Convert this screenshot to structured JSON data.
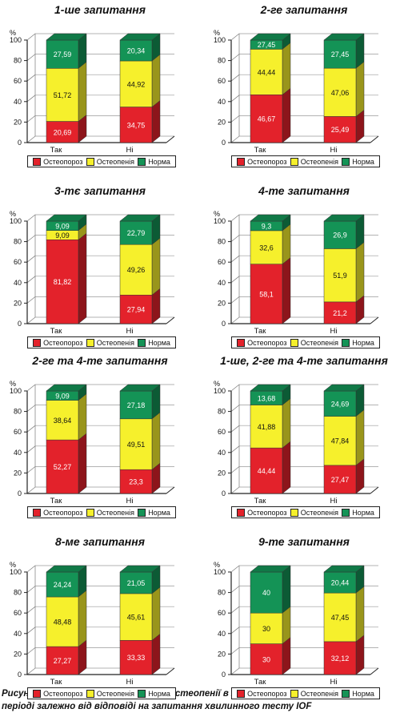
{
  "colors": {
    "osteoporosis": "#e3222b",
    "osteopenia": "#f6f02c",
    "norm": "#149356"
  },
  "legend": {
    "osteoporosis": "Остеопороз",
    "osteopenia": "Остеопенія",
    "norm": "Норма"
  },
  "caption": "Рисунок 1. Частка остеопорозу та остеопенії в жінок у постменопаузально-му періоді залежно від відповіді на запитання хвилинного тесту IOF",
  "chart_data": [
    {
      "type": "bar",
      "title": "1-ше запитання",
      "ylabel": "%",
      "ylim": [
        0,
        100
      ],
      "yticks": [
        "0",
        "20",
        "40",
        "60",
        "80",
        "100"
      ],
      "categories": [
        "Так",
        "Ні"
      ],
      "series": [
        {
          "name": "Остеопороз",
          "values": [
            20.69,
            34.75
          ],
          "labels": [
            "20,69",
            "34,75"
          ]
        },
        {
          "name": "Остеопенія",
          "values": [
            51.72,
            44.92
          ],
          "labels": [
            "51,72",
            "44,92"
          ]
        },
        {
          "name": "Норма",
          "values": [
            27.59,
            20.34
          ],
          "labels": [
            "27,59",
            "20,34"
          ]
        }
      ]
    },
    {
      "type": "bar",
      "title": "2-ге запитання",
      "ylabel": "%",
      "ylim": [
        0,
        100
      ],
      "yticks": [
        "0",
        "20",
        "40",
        "60",
        "80",
        "100"
      ],
      "categories": [
        "Так",
        "Ні"
      ],
      "series": [
        {
          "name": "Остеопороз",
          "values": [
            46.67,
            25.49
          ],
          "labels": [
            "46,67",
            "25,49"
          ]
        },
        {
          "name": "Остеопенія",
          "values": [
            44.44,
            47.06
          ],
          "labels": [
            "44,44",
            "47,06"
          ]
        },
        {
          "name": "Норма",
          "values": [
            27.45,
            27.45
          ],
          "labels": [
            "27,45",
            "27,45"
          ]
        }
      ]
    },
    {
      "type": "bar",
      "title": "3-тє запитання",
      "ylabel": "%",
      "ylim": [
        0,
        100
      ],
      "yticks": [
        "0",
        "20",
        "40",
        "60",
        "80",
        "100"
      ],
      "categories": [
        "Так",
        "Ні"
      ],
      "series": [
        {
          "name": "Остеопороз",
          "values": [
            81.82,
            27.94
          ],
          "labels": [
            "81,82",
            "27,94"
          ]
        },
        {
          "name": "Остеопенія",
          "values": [
            9.09,
            49.26
          ],
          "labels": [
            "9,09",
            "49,26"
          ]
        },
        {
          "name": "Норма",
          "values": [
            9.09,
            22.79
          ],
          "labels": [
            "9,09",
            "22,79"
          ]
        }
      ]
    },
    {
      "type": "bar",
      "title": "4-те запитання",
      "ylabel": "%",
      "ylim": [
        0,
        100
      ],
      "yticks": [
        "0",
        "20",
        "40",
        "60",
        "80",
        "100"
      ],
      "categories": [
        "Так",
        "Ні"
      ],
      "series": [
        {
          "name": "Остеопороз",
          "values": [
            58.1,
            21.2
          ],
          "labels": [
            "58,1",
            "21,2"
          ]
        },
        {
          "name": "Остеопенія",
          "values": [
            32.6,
            51.9
          ],
          "labels": [
            "32,6",
            "51,9"
          ]
        },
        {
          "name": "Норма",
          "values": [
            9.3,
            26.9
          ],
          "labels": [
            "9,3",
            "26,9"
          ]
        }
      ]
    },
    {
      "type": "bar",
      "title": "2-ге та 4-те запитання",
      "ylabel": "%",
      "ylim": [
        0,
        100
      ],
      "yticks": [
        "0",
        "20",
        "40",
        "60",
        "80",
        "100"
      ],
      "categories": [
        "Так",
        "Ні"
      ],
      "series": [
        {
          "name": "Остеопороз",
          "values": [
            52.27,
            23.3
          ],
          "labels": [
            "52,27",
            "23,3"
          ]
        },
        {
          "name": "Остеопенія",
          "values": [
            38.64,
            49.51
          ],
          "labels": [
            "38,64",
            "49,51"
          ]
        },
        {
          "name": "Норма",
          "values": [
            9.09,
            27.18
          ],
          "labels": [
            "9,09",
            "27,18"
          ]
        }
      ]
    },
    {
      "type": "bar",
      "title": "1-ше, 2-ге та 4-те запитання",
      "ylabel": "%",
      "ylim": [
        0,
        100
      ],
      "yticks": [
        "0",
        "20",
        "40",
        "60",
        "80",
        "100"
      ],
      "categories": [
        "Так",
        "Ні"
      ],
      "series": [
        {
          "name": "Остеопороз",
          "values": [
            44.44,
            27.47
          ],
          "labels": [
            "44,44",
            "27,47"
          ]
        },
        {
          "name": "Остеопенія",
          "values": [
            41.88,
            47.84
          ],
          "labels": [
            "41,88",
            "47,84"
          ]
        },
        {
          "name": "Норма",
          "values": [
            13.68,
            24.69
          ],
          "labels": [
            "13,68",
            "24,69"
          ]
        }
      ]
    },
    {
      "type": "bar",
      "title": "8-ме запитання",
      "ylabel": "%",
      "ylim": [
        0,
        100
      ],
      "yticks": [
        "0",
        "20",
        "40",
        "60",
        "80",
        "100"
      ],
      "categories": [
        "Так",
        "Ні"
      ],
      "series": [
        {
          "name": "Остеопороз",
          "values": [
            27.27,
            33.33
          ],
          "labels": [
            "27,27",
            "33,33"
          ]
        },
        {
          "name": "Остеопенія",
          "values": [
            48.48,
            45.61
          ],
          "labels": [
            "48,48",
            "45,61"
          ]
        },
        {
          "name": "Норма",
          "values": [
            24.24,
            21.05
          ],
          "labels": [
            "24,24",
            "21,05"
          ]
        }
      ]
    },
    {
      "type": "bar",
      "title": "9-те запитання",
      "ylabel": "%",
      "ylim": [
        0,
        100
      ],
      "yticks": [
        "0",
        "20",
        "40",
        "60",
        "80",
        "100"
      ],
      "categories": [
        "Так",
        "Ні"
      ],
      "series": [
        {
          "name": "Остеопороз",
          "values": [
            30,
            32.12
          ],
          "labels": [
            "30",
            "32,12"
          ]
        },
        {
          "name": "Остеопенія",
          "values": [
            30,
            47.45
          ],
          "labels": [
            "30",
            "47,45"
          ]
        },
        {
          "name": "Норма",
          "values": [
            40,
            20.44
          ],
          "labels": [
            "40",
            "20,44"
          ]
        }
      ]
    }
  ]
}
